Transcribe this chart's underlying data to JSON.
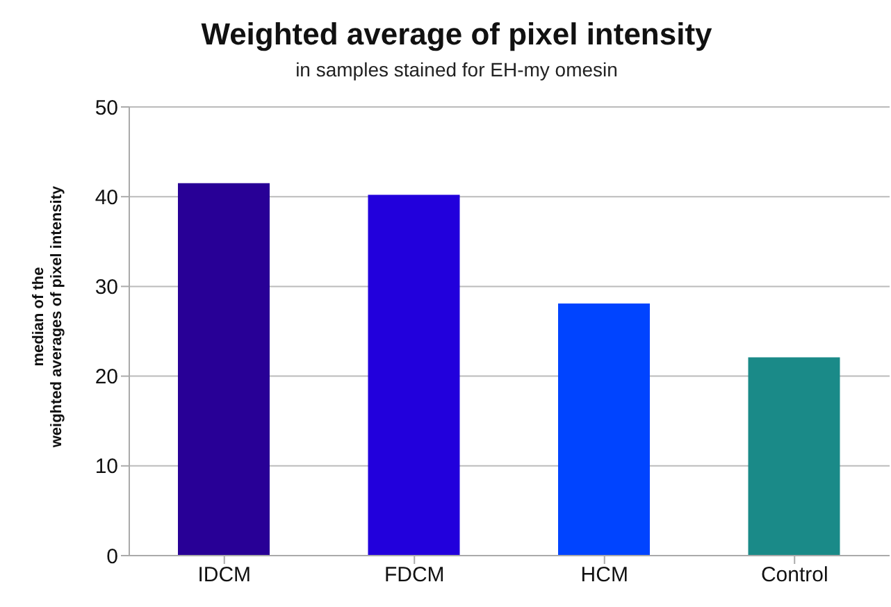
{
  "chart_data": {
    "type": "bar",
    "title": "Weighted average of pixel intensity",
    "subtitle": "in samples stained for EH-my omesin",
    "ylabel": "median of the\nweighted averages of pixel intensity",
    "categories": [
      "IDCM",
      "FDCM",
      "HCM",
      "Control"
    ],
    "values": [
      41.5,
      40.2,
      28.1,
      22.1
    ],
    "colors": [
      "#280096",
      "#2200dc",
      "#0044ff",
      "#1a8a88"
    ],
    "ylim": [
      0,
      50
    ],
    "yticks": [
      0,
      10,
      20,
      30,
      40,
      50
    ],
    "grid": "y"
  }
}
